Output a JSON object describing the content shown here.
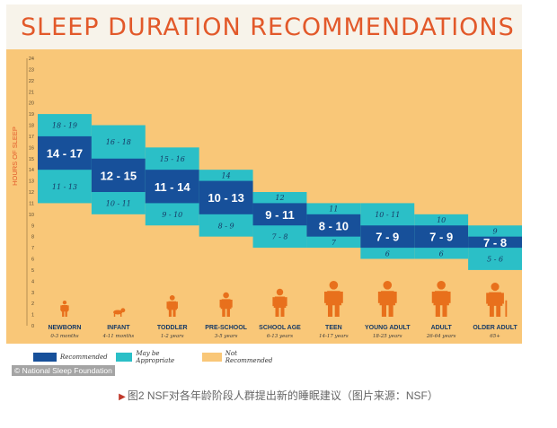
{
  "figure": {
    "title": "SLEEP DURATION RECOMMENDATIONS",
    "copyright": "© National Sleep Foundation"
  },
  "caption": {
    "text": "图2 NSF对各年龄阶段人群提出新的睡眠建议（图片来源：NSF）"
  },
  "colors": {
    "recommended": "#17509a",
    "appropriate": "#2bbfc7",
    "not_recommended": "#f9c778",
    "title": "#e2592a",
    "silhouette": "#e8701c"
  },
  "chart_data": {
    "type": "bar",
    "title": "SLEEP DURATION RECOMMENDATIONS",
    "ylabel": "HOURS OF SLEEP",
    "ylim": [
      0,
      24
    ],
    "yticks": [
      0,
      1,
      2,
      3,
      4,
      5,
      6,
      7,
      8,
      9,
      10,
      11,
      12,
      13,
      14,
      15,
      16,
      17,
      18,
      19,
      20,
      21,
      22,
      23,
      24
    ],
    "grid": false,
    "legend_position": "bottom-left",
    "legend": [
      {
        "key": "recommended",
        "label": "Recommended"
      },
      {
        "key": "appropriate",
        "label": "May be Appropriate"
      },
      {
        "key": "not_recommended",
        "label": "Not Recommended"
      }
    ],
    "categories": [
      {
        "name": "NEWBORN",
        "age": "0-3 months",
        "appropriate": [
          11,
          19
        ],
        "recommended": [
          14,
          17
        ],
        "upper_label": "18 - 19",
        "rec_label": "14 - 17",
        "lower_label": "11 - 13"
      },
      {
        "name": "INFANT",
        "age": "4-11 months",
        "appropriate": [
          10,
          18
        ],
        "recommended": [
          12,
          15
        ],
        "upper_label": "16 - 18",
        "rec_label": "12 - 15",
        "lower_label": "10 - 11"
      },
      {
        "name": "TODDLER",
        "age": "1-2 years",
        "appropriate": [
          9,
          16
        ],
        "recommended": [
          11,
          14
        ],
        "upper_label": "15 - 16",
        "rec_label": "11 - 14",
        "lower_label": "9 - 10"
      },
      {
        "name": "PRE-SCHOOL",
        "age": "3-5 years",
        "appropriate": [
          8,
          14
        ],
        "recommended": [
          10,
          13
        ],
        "upper_label": "14",
        "rec_label": "10 - 13",
        "lower_label": "8 - 9"
      },
      {
        "name": "SCHOOL AGE",
        "age": "6-13 years",
        "appropriate": [
          7,
          12
        ],
        "recommended": [
          9,
          11
        ],
        "upper_label": "12",
        "rec_label": "9 - 11",
        "lower_label": "7 - 8"
      },
      {
        "name": "TEEN",
        "age": "14-17 years",
        "appropriate": [
          7,
          11
        ],
        "recommended": [
          8,
          10
        ],
        "upper_label": "11",
        "rec_label": "8 - 10",
        "lower_label": "7"
      },
      {
        "name": "YOUNG ADULT",
        "age": "18-25 years",
        "appropriate": [
          6,
          11
        ],
        "recommended": [
          7,
          9
        ],
        "upper_label": "10 - 11",
        "rec_label": "7 - 9",
        "lower_label": "6"
      },
      {
        "name": "ADULT",
        "age": "26-64 years",
        "appropriate": [
          6,
          10
        ],
        "recommended": [
          7,
          9
        ],
        "upper_label": "10",
        "rec_label": "7 - 9",
        "lower_label": "6"
      },
      {
        "name": "OLDER ADULT",
        "age": "65+",
        "appropriate": [
          5,
          9
        ],
        "recommended": [
          7,
          8
        ],
        "upper_label": "9",
        "rec_label": "7 - 8",
        "lower_label": "5 - 6"
      }
    ],
    "figures": [
      {
        "icon": "newborn-icon",
        "scale": 0.45
      },
      {
        "icon": "infant-crawling-icon",
        "scale": 0.45
      },
      {
        "icon": "toddler-icon",
        "scale": 0.6
      },
      {
        "icon": "preschool-child-icon",
        "scale": 0.68
      },
      {
        "icon": "school-child-icon",
        "scale": 0.78
      },
      {
        "icon": "teen-icon",
        "scale": 1.0
      },
      {
        "icon": "young-adult-icon",
        "scale": 1.0
      },
      {
        "icon": "adult-icon",
        "scale": 1.0
      },
      {
        "icon": "older-adult-icon",
        "scale": 0.95
      }
    ]
  }
}
